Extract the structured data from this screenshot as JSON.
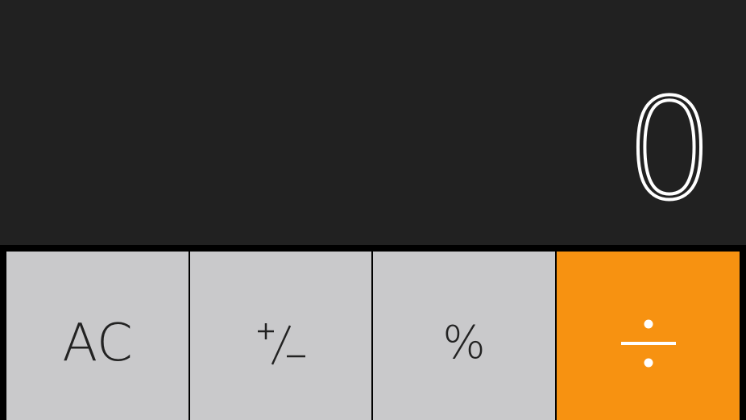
{
  "display": {
    "value": "0"
  },
  "keys": {
    "clear": {
      "label": "AC"
    },
    "sign": {
      "label": "+/−",
      "icon": "plus-minus-icon"
    },
    "percent": {
      "label": "%"
    },
    "divide": {
      "label": "÷",
      "icon": "divide-icon"
    }
  },
  "colors": {
    "display_bg": "#212121",
    "key_gray": "#c9c9cb",
    "key_orange": "#f79211",
    "separator": "#000000",
    "display_text": "#ffffff",
    "key_text": "#222222"
  }
}
